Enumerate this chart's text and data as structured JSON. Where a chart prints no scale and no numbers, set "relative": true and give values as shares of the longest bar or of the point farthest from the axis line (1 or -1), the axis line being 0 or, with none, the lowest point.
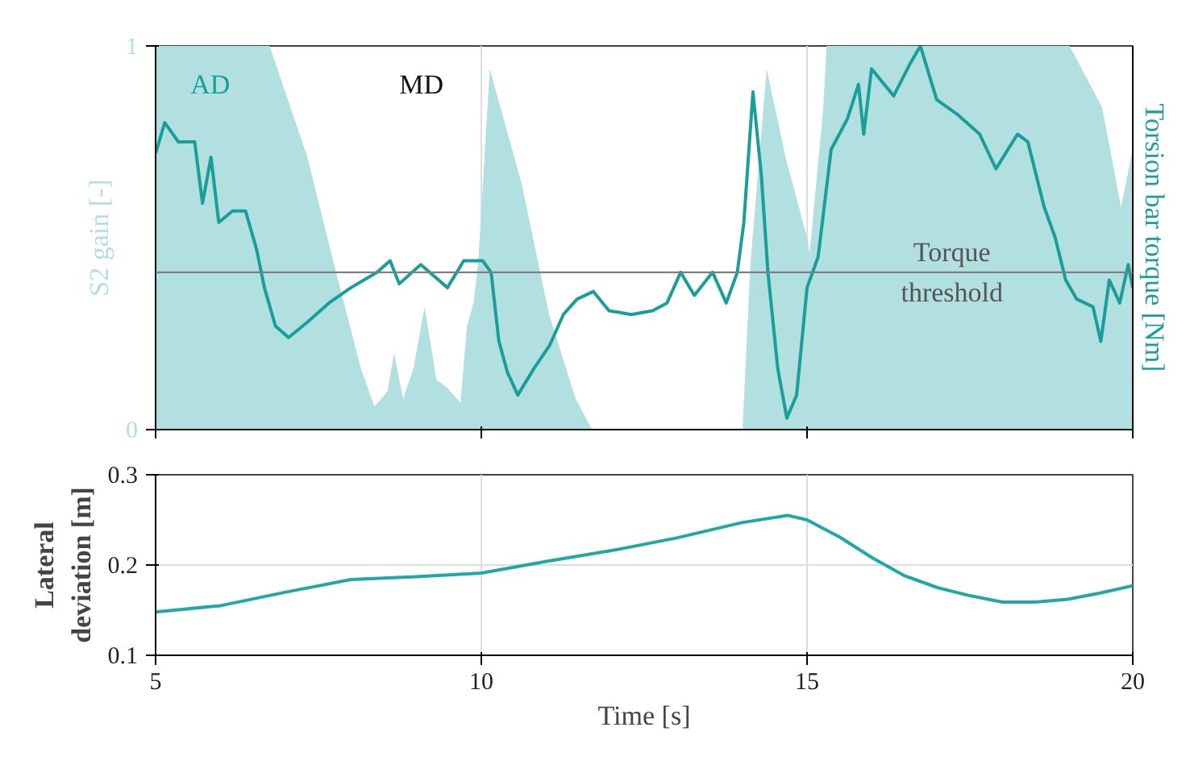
{
  "chart_data": [
    {
      "type": "area",
      "ylabel": "S2 gain [-]",
      "xlim": [
        5,
        20
      ],
      "xticks": [
        5,
        10,
        15,
        20
      ],
      "ylim": [
        0,
        1
      ],
      "yticks": [
        0,
        1
      ],
      "grid": "x",
      "tick_labels": "y",
      "series": [
        {
          "type": "area",
          "color": "#b2dfdf",
          "x": [
            5,
            6.75,
            7.33,
            7.74,
            8.15,
            8.36,
            8.56,
            8.66,
            8.8,
            8.96,
            9.13,
            9.31,
            9.47,
            9.68,
            9.78,
            9.88,
            9.95,
            10.13,
            10.62,
            11.04,
            11.45,
            11.7,
            14.01,
            14.13,
            14.38,
            14.67,
            15.0,
            15.04,
            15.25,
            15.3,
            19.03,
            19.53,
            19.82,
            20.0
          ],
          "values": [
            1,
            1,
            0.71,
            0.43,
            0.16,
            0.06,
            0.1,
            0.2,
            0.08,
            0.16,
            0.32,
            0.13,
            0.11,
            0.07,
            0.27,
            0.33,
            0.43,
            0.94,
            0.64,
            0.3,
            0.08,
            0,
            0,
            0.43,
            0.94,
            0.71,
            0.5,
            0.46,
            0.84,
            1,
            1,
            0.84,
            0.58,
            0.73
          ]
        }
      ],
      "annotations": [
        "AD",
        "MD"
      ]
    },
    {
      "type": "line",
      "relative": true,
      "y2label": "Torsion bar torque [Nm]",
      "xlim": [
        5,
        20
      ],
      "series": [
        {
          "color": "#1a9e9a",
          "x": [
            5.0,
            5.14,
            5.35,
            5.6,
            5.72,
            5.85,
            5.97,
            6.18,
            6.38,
            6.55,
            6.67,
            6.84,
            7.04,
            7.33,
            7.66,
            8.0,
            8.4,
            8.6,
            8.74,
            9.07,
            9.48,
            9.73,
            10.02,
            10.15,
            10.27,
            10.4,
            10.56,
            10.81,
            11.05,
            11.26,
            11.47,
            11.72,
            11.96,
            12.3,
            12.63,
            12.85,
            13.06,
            13.27,
            13.55,
            13.76,
            13.93,
            14.03,
            14.17,
            14.3,
            14.4,
            14.55,
            14.69,
            14.84,
            15.0,
            15.17,
            15.37,
            15.62,
            15.79,
            15.87,
            15.99,
            16.33,
            16.57,
            16.74,
            16.99,
            17.32,
            17.65,
            17.9,
            18.23,
            18.39,
            18.64,
            18.81,
            18.97,
            19.14,
            19.39,
            19.51,
            19.64,
            19.8,
            19.93,
            20.0
          ],
          "values": [
            0.72,
            0.8,
            0.75,
            0.75,
            0.59,
            0.71,
            0.54,
            0.57,
            0.57,
            0.47,
            0.37,
            0.27,
            0.24,
            0.28,
            0.33,
            0.37,
            0.41,
            0.44,
            0.38,
            0.43,
            0.37,
            0.44,
            0.44,
            0.41,
            0.23,
            0.15,
            0.09,
            0.16,
            0.22,
            0.3,
            0.34,
            0.36,
            0.31,
            0.3,
            0.31,
            0.33,
            0.41,
            0.35,
            0.41,
            0.33,
            0.41,
            0.54,
            0.88,
            0.66,
            0.41,
            0.16,
            0.03,
            0.09,
            0.37,
            0.45,
            0.73,
            0.81,
            0.9,
            0.77,
            0.94,
            0.87,
            0.95,
            1,
            0.86,
            0.82,
            0.77,
            0.68,
            0.77,
            0.75,
            0.58,
            0.5,
            0.39,
            0.34,
            0.32,
            0.23,
            0.39,
            0.33,
            0.43,
            0.37
          ]
        }
      ],
      "ref_lines": [
        {
          "axis": "y",
          "value": 0.41,
          "label": "Torque threshold",
          "color": "#7f7f7f"
        }
      ]
    },
    {
      "type": "line",
      "xlabel": "Time [s]",
      "ylabel": "Lateral deviation [m]",
      "xlim": [
        5,
        20
      ],
      "xticks": [
        5,
        10,
        15,
        20
      ],
      "ylim": [
        0.1,
        0.3
      ],
      "yticks": [
        0.1,
        0.2,
        0.3
      ],
      "grid": true,
      "series": [
        {
          "color": "#1fa8a6",
          "x": [
            5,
            6,
            7,
            8,
            9,
            10,
            11,
            12,
            13,
            14,
            14.7,
            15,
            15.5,
            16,
            16.5,
            17,
            17.5,
            18,
            18.5,
            19,
            19.5,
            20
          ],
          "values": [
            0.148,
            0.155,
            0.17,
            0.184,
            0.187,
            0.191,
            0.204,
            0.216,
            0.23,
            0.247,
            0.255,
            0.25,
            0.231,
            0.208,
            0.188,
            0.175,
            0.166,
            0.159,
            0.159,
            0.162,
            0.169,
            0.177
          ]
        }
      ]
    }
  ]
}
